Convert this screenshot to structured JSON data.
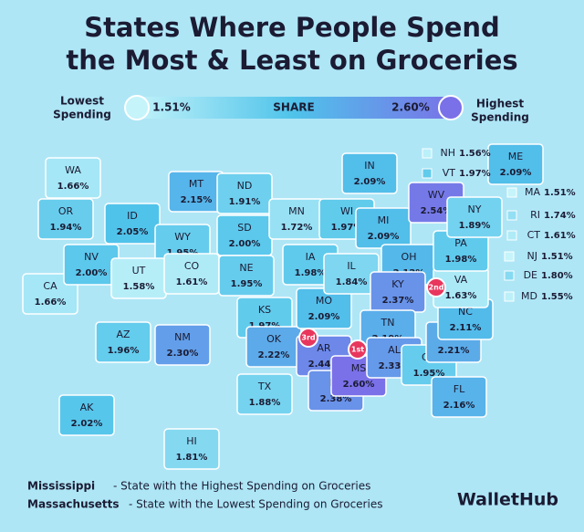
{
  "title": [
    "States Where People Spend",
    "the Most & Least on Groceries"
  ],
  "legend": {
    "low_text": [
      "Lowest",
      "Spending"
    ],
    "high_text": [
      "Highest",
      "Spending"
    ],
    "center": "SHARE",
    "min": {
      "value": 1.51,
      "label": "1.51%"
    },
    "max": {
      "value": 2.6,
      "label": "2.60%"
    }
  },
  "states": [
    {
      "abbr": "WA",
      "value": 1.66,
      "label": "1.66%"
    },
    {
      "abbr": "OR",
      "value": 1.94,
      "label": "1.94%"
    },
    {
      "abbr": "CA",
      "value": 1.66,
      "label": "1.66%"
    },
    {
      "abbr": "NV",
      "value": 2.0,
      "label": "2.00%"
    },
    {
      "abbr": "ID",
      "value": 2.05,
      "label": "2.05%"
    },
    {
      "abbr": "MT",
      "value": 2.15,
      "label": "2.15%"
    },
    {
      "abbr": "WY",
      "value": 1.95,
      "label": "1.95%"
    },
    {
      "abbr": "UT",
      "value": 1.58,
      "label": "1.58%"
    },
    {
      "abbr": "CO",
      "value": 1.61,
      "label": "1.61%"
    },
    {
      "abbr": "AZ",
      "value": 1.96,
      "label": "1.96%"
    },
    {
      "abbr": "NM",
      "value": 2.3,
      "label": "2.30%"
    },
    {
      "abbr": "ND",
      "value": 1.91,
      "label": "1.91%"
    },
    {
      "abbr": "SD",
      "value": 2.0,
      "label": "2.00%"
    },
    {
      "abbr": "NE",
      "value": 1.95,
      "label": "1.95%"
    },
    {
      "abbr": "KS",
      "value": 1.97,
      "label": "1.97%"
    },
    {
      "abbr": "OK",
      "value": 2.22,
      "label": "2.22%"
    },
    {
      "abbr": "TX",
      "value": 1.88,
      "label": "1.88%"
    },
    {
      "abbr": "MN",
      "value": 1.72,
      "label": "1.72%"
    },
    {
      "abbr": "IA",
      "value": 1.98,
      "label": "1.98%"
    },
    {
      "abbr": "MO",
      "value": 2.09,
      "label": "2.09%"
    },
    {
      "abbr": "AR",
      "value": 2.44,
      "label": "2.44%"
    },
    {
      "abbr": "LA",
      "value": 2.38,
      "label": "2.38%"
    },
    {
      "abbr": "WI",
      "value": 1.97,
      "label": "1.97%"
    },
    {
      "abbr": "IL",
      "value": 1.84,
      "label": "1.84%"
    },
    {
      "abbr": "MI",
      "value": 2.09,
      "label": "2.09%"
    },
    {
      "abbr": "IN",
      "value": 2.09,
      "label": "2.09%"
    },
    {
      "abbr": "OH",
      "value": 2.12,
      "label": "2.12%"
    },
    {
      "abbr": "KY",
      "value": 2.37,
      "label": "2.37%"
    },
    {
      "abbr": "TN",
      "value": 2.19,
      "label": "2.19%"
    },
    {
      "abbr": "MS",
      "value": 2.6,
      "label": "2.60%"
    },
    {
      "abbr": "AL",
      "value": 2.33,
      "label": "2.33%"
    },
    {
      "abbr": "GA",
      "value": 1.95,
      "label": "1.95%"
    },
    {
      "abbr": "FL",
      "value": 2.16,
      "label": "2.16%"
    },
    {
      "abbr": "SC",
      "value": 2.21,
      "label": "2.21%"
    },
    {
      "abbr": "NC",
      "value": 2.11,
      "label": "2.11%"
    },
    {
      "abbr": "VA",
      "value": 1.63,
      "label": "1.63%"
    },
    {
      "abbr": "WV",
      "value": 2.54,
      "label": "2.54%"
    },
    {
      "abbr": "PA",
      "value": 1.98,
      "label": "1.98%"
    },
    {
      "abbr": "NY",
      "value": 1.89,
      "label": "1.89%"
    },
    {
      "abbr": "ME",
      "value": 2.09,
      "label": "2.09%"
    },
    {
      "abbr": "NH",
      "value": 1.56,
      "label": "1.56%"
    },
    {
      "abbr": "VT",
      "value": 1.97,
      "label": "1.97%"
    },
    {
      "abbr": "MA",
      "value": 1.51,
      "label": "1.51%"
    },
    {
      "abbr": "RI",
      "value": 1.74,
      "label": "1.74%"
    },
    {
      "abbr": "CT",
      "value": 1.61,
      "label": "1.61%"
    },
    {
      "abbr": "NJ",
      "value": 1.51,
      "label": "1.51%"
    },
    {
      "abbr": "DE",
      "value": 1.8,
      "label": "1.80%"
    },
    {
      "abbr": "MD",
      "value": 1.55,
      "label": "1.55%"
    },
    {
      "abbr": "AK",
      "value": 2.02,
      "label": "2.02%"
    },
    {
      "abbr": "HI",
      "value": 1.81,
      "label": "1.81%"
    }
  ],
  "ranks": [
    "1st",
    "2nd",
    "3rd"
  ],
  "notes": [
    {
      "state": "Mississippi",
      "text": "- State with the Highest Spending on Groceries"
    },
    {
      "state": "Massachusetts",
      "text": "- State with the Lowest Spending on Groceries"
    }
  ],
  "logo": "WalletHub"
}
